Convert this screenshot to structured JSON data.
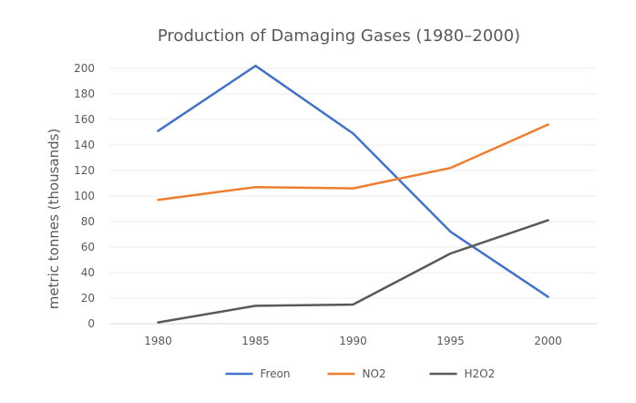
{
  "chart_data": {
    "type": "line",
    "title": "Production of Damaging Gases (1980–2000)",
    "xlabel": "",
    "ylabel": "metric tonnes (thousands)",
    "categories": [
      "1980",
      "1985",
      "1990",
      "1995",
      "2000"
    ],
    "ylim": [
      0,
      200
    ],
    "yticks": [
      0,
      20,
      40,
      60,
      80,
      100,
      120,
      140,
      160,
      180,
      200
    ],
    "grid": true,
    "legend": "bottom",
    "series": [
      {
        "name": "Freon",
        "color": "#4472C4",
        "values": [
          151,
          202,
          149,
          72,
          21
        ]
      },
      {
        "name": "NO2",
        "color": "#ED7D31",
        "values": [
          97,
          107,
          106,
          122,
          156
        ]
      },
      {
        "name": "H2O2",
        "color": "#595959",
        "values": [
          1,
          14,
          15,
          55,
          81
        ]
      }
    ]
  }
}
